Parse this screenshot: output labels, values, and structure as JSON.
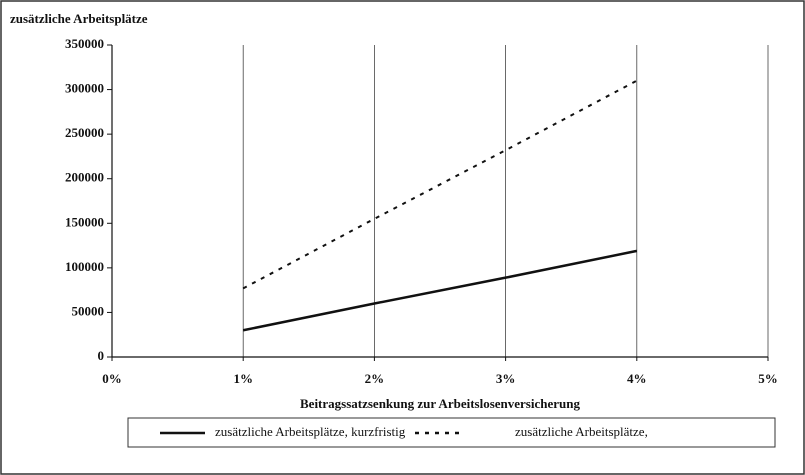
{
  "chart_data": {
    "type": "line",
    "ylabel": "zusätzliche Arbeitsplätze",
    "xlabel": "Beitragssatzsenkung zur Arbeitslosenversicherung",
    "x": [
      1,
      2,
      3,
      4
    ],
    "series": [
      {
        "name": "zusätzliche Arbeitsplätze, kurzfristig",
        "color": "#111111",
        "dash": "solid",
        "values": [
          30000,
          60000,
          89000,
          119000
        ]
      },
      {
        "name": "zusätzliche Arbeitsplätze,",
        "color": "#111111",
        "dash": "dashed",
        "values": [
          77000,
          155000,
          232000,
          310000
        ]
      }
    ],
    "xlim": [
      0,
      5
    ],
    "xticks": [
      {
        "value": 0,
        "label": "0%"
      },
      {
        "value": 1,
        "label": "1%"
      },
      {
        "value": 2,
        "label": "2%"
      },
      {
        "value": 3,
        "label": "3%"
      },
      {
        "value": 4,
        "label": "4%"
      },
      {
        "value": 5,
        "label": "5%"
      }
    ],
    "ylim": [
      0,
      350000
    ],
    "yticks": [
      0,
      50000,
      100000,
      150000,
      200000,
      250000,
      300000,
      350000
    ],
    "grid": "x",
    "legend": "bottom"
  }
}
